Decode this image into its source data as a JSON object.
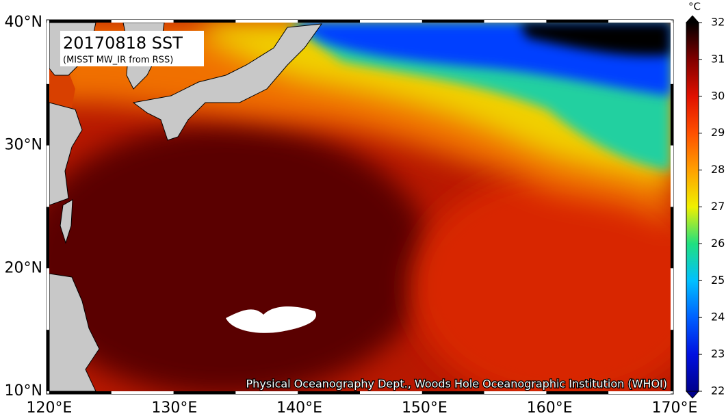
{
  "map": {
    "title": "20170818 SST",
    "subtitle": "(MISST MW_IR from RSS)",
    "credit": "Physical Oceanography Dept., Woods Hole Oceanographic Institution (WHOI)",
    "lat_labels": [
      "40°N",
      "30°N",
      "20°N",
      "10°N"
    ],
    "lon_labels": [
      "120°E",
      "130°E",
      "140°E",
      "150°E",
      "160°E",
      "170°E"
    ],
    "colorbar": {
      "unit": "°C",
      "ticks": [
        22,
        23,
        24,
        25,
        26,
        27,
        28,
        29,
        30,
        31,
        32
      ],
      "colors": [
        "#00008c",
        "#0010e0",
        "#0060ff",
        "#00c0ff",
        "#20e080",
        "#f0f000",
        "#ffa000",
        "#ff5000",
        "#e01000",
        "#800000",
        "#000000"
      ]
    }
  }
}
